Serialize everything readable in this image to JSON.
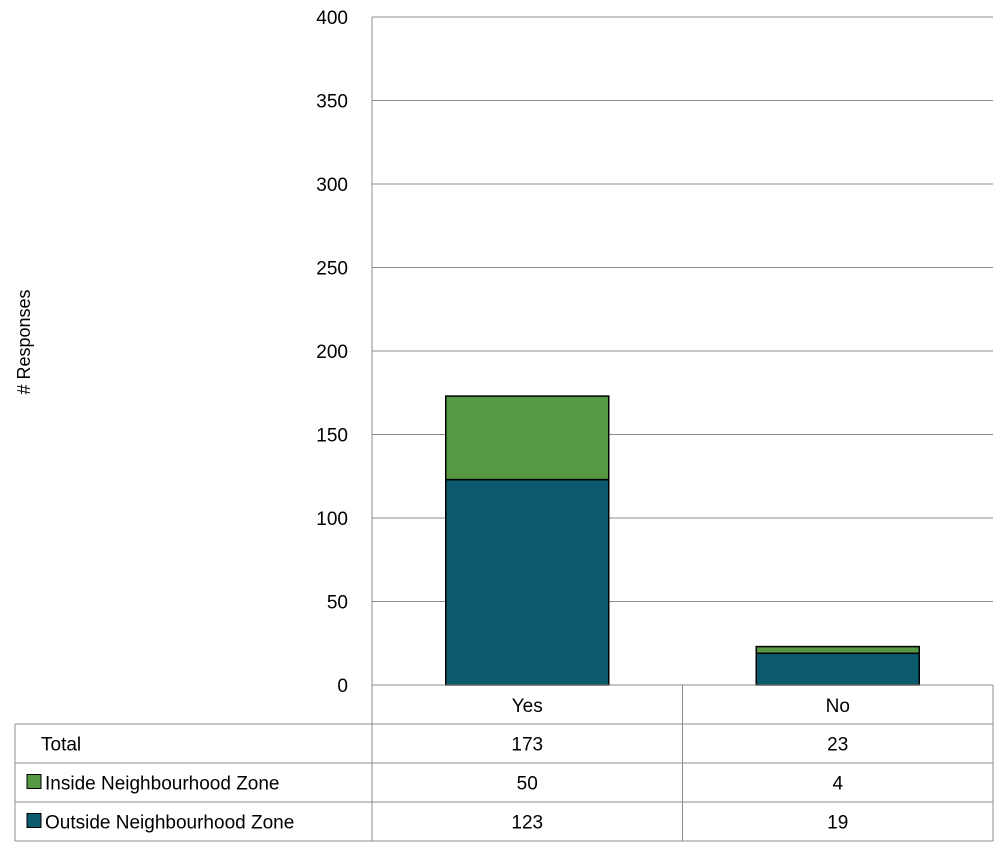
{
  "chart_data": {
    "type": "bar",
    "stacked": true,
    "title": "",
    "xlabel": "",
    "ylabel": "# Responses",
    "ylim": [
      0,
      400
    ],
    "yticks": [
      0,
      50,
      100,
      150,
      200,
      250,
      300,
      350,
      400
    ],
    "categories": [
      "Yes",
      "No"
    ],
    "series": [
      {
        "name": "Outside Neighbourhood Zone",
        "values": [
          123,
          19
        ],
        "color": "#0b5a6e"
      },
      {
        "name": "Inside Neighbourhood Zone",
        "values": [
          50,
          4
        ],
        "color": "#559944"
      }
    ],
    "grid": true,
    "legend": "data-table",
    "data_table": {
      "rows": [
        {
          "label": "Total",
          "values": [
            173,
            23
          ],
          "swatch": null
        },
        {
          "label": "Inside Neighbourhood Zone",
          "values": [
            50,
            4
          ],
          "swatch": "#559944"
        },
        {
          "label": "Outside Neighbourhood Zone",
          "values": [
            123,
            19
          ],
          "swatch": "#0b5a6e"
        }
      ]
    }
  }
}
